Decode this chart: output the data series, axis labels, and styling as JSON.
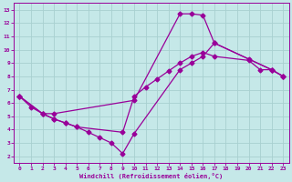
{
  "xlabel": "Windchill (Refroidissement éolien,°C)",
  "bg_color": "#c5e8e8",
  "grid_color": "#a8d0d0",
  "line_color": "#990099",
  "line1_x": [
    0,
    1,
    2,
    3,
    10,
    14,
    15,
    16,
    17,
    22,
    23
  ],
  "line1_y": [
    6.5,
    5.7,
    5.2,
    5.2,
    6.2,
    12.7,
    12.7,
    12.6,
    10.5,
    8.5,
    8.0
  ],
  "line2_x": [
    0,
    2,
    3,
    4,
    5,
    9,
    10,
    11,
    12,
    13,
    14,
    15,
    16,
    17,
    20,
    21,
    22,
    23
  ],
  "line2_y": [
    6.5,
    5.2,
    4.8,
    4.5,
    4.2,
    3.8,
    6.5,
    7.2,
    7.8,
    8.4,
    9.0,
    9.5,
    9.8,
    9.5,
    9.2,
    8.5,
    8.5,
    8.0
  ],
  "line3_x": [
    0,
    2,
    3,
    4,
    5,
    6,
    7,
    8,
    9,
    10,
    14,
    15,
    16,
    17,
    20,
    22,
    23
  ],
  "line3_y": [
    6.5,
    5.2,
    4.8,
    4.5,
    4.2,
    3.8,
    3.4,
    3.0,
    2.2,
    3.7,
    8.5,
    9.0,
    9.5,
    10.5,
    9.3,
    8.5,
    8.0
  ],
  "xlim": [
    -0.5,
    23.5
  ],
  "ylim": [
    1.5,
    13.5
  ],
  "xticks": [
    0,
    1,
    2,
    3,
    4,
    5,
    6,
    7,
    8,
    9,
    10,
    11,
    12,
    13,
    14,
    15,
    16,
    17,
    18,
    19,
    20,
    21,
    22,
    23
  ],
  "yticks": [
    2,
    3,
    4,
    5,
    6,
    7,
    8,
    9,
    10,
    11,
    12,
    13
  ]
}
